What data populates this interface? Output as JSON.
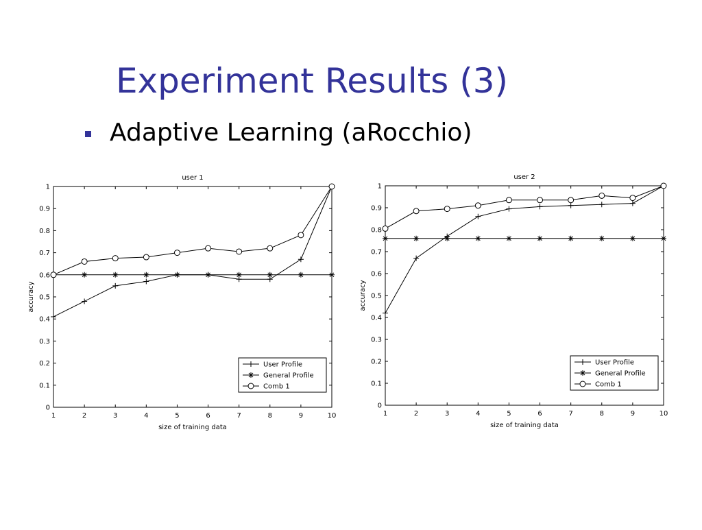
{
  "slide": {
    "title": "Experiment Results (3)",
    "bullet": "Adaptive Learning (aRocchio)"
  },
  "chart_data": [
    {
      "type": "line",
      "title": "user 1",
      "x_label": "size of training data",
      "y_label": "accuracy",
      "x": [
        1,
        2,
        3,
        4,
        5,
        6,
        7,
        8,
        9,
        10
      ],
      "xlim": [
        1,
        10
      ],
      "ylim": [
        0,
        1
      ],
      "xticks": [
        1,
        2,
        3,
        4,
        5,
        6,
        7,
        8,
        9,
        10
      ],
      "yticks": [
        0,
        0.1,
        0.2,
        0.3,
        0.4,
        0.5,
        0.6,
        0.7,
        0.8,
        0.9,
        1
      ],
      "legend": "lower right",
      "series": [
        {
          "name": "User Profile",
          "color": "#000000",
          "marker": "+",
          "values": [
            0.41,
            0.48,
            0.55,
            0.57,
            0.6,
            0.6,
            0.58,
            0.58,
            0.67,
            1.0
          ]
        },
        {
          "name": "General Profile",
          "color": "#000000",
          "marker": "*",
          "values": [
            0.6,
            0.6,
            0.6,
            0.6,
            0.6,
            0.6,
            0.6,
            0.6,
            0.6,
            0.6
          ]
        },
        {
          "name": "Comb 1",
          "color": "#000000",
          "marker": "o",
          "values": [
            0.6,
            0.66,
            0.675,
            0.68,
            0.7,
            0.72,
            0.705,
            0.72,
            0.78,
            1.0
          ]
        }
      ]
    },
    {
      "type": "line",
      "title": "user 2",
      "x_label": "size of training data",
      "y_label": "accuracy",
      "x": [
        1,
        2,
        3,
        4,
        5,
        6,
        7,
        8,
        9,
        10
      ],
      "xlim": [
        1,
        10
      ],
      "ylim": [
        0,
        1
      ],
      "xticks": [
        1,
        2,
        3,
        4,
        5,
        6,
        7,
        8,
        9,
        10
      ],
      "yticks": [
        0,
        0.1,
        0.2,
        0.3,
        0.4,
        0.5,
        0.6,
        0.7,
        0.8,
        0.9,
        1
      ],
      "legend": "lower right",
      "series": [
        {
          "name": "User Profile",
          "color": "#000000",
          "marker": "+",
          "values": [
            0.42,
            0.67,
            0.77,
            0.86,
            0.895,
            0.905,
            0.91,
            0.915,
            0.92,
            1.0
          ]
        },
        {
          "name": "General Profile",
          "color": "#000000",
          "marker": "*",
          "values": [
            0.76,
            0.76,
            0.76,
            0.76,
            0.76,
            0.76,
            0.76,
            0.76,
            0.76,
            0.76
          ]
        },
        {
          "name": "Comb 1",
          "color": "#000000",
          "marker": "o",
          "values": [
            0.805,
            0.885,
            0.895,
            0.91,
            0.935,
            0.935,
            0.935,
            0.955,
            0.945,
            1.0
          ]
        }
      ]
    }
  ]
}
